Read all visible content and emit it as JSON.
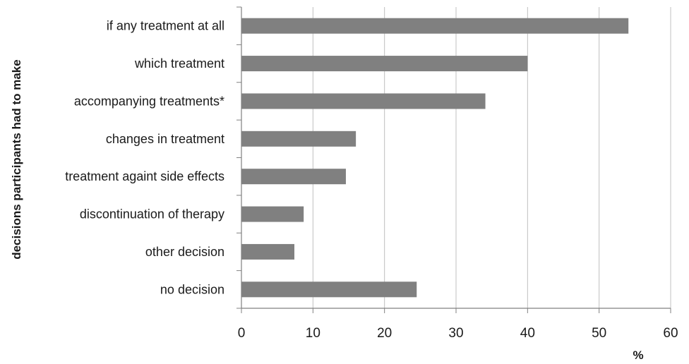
{
  "chart_data": {
    "type": "bar",
    "orientation": "horizontal",
    "categories": [
      "if any treatment at all",
      "which treatment",
      "accompanying treatments*",
      "changes in treatment",
      "treatment againt side effects",
      "discontinuation of therapy",
      "other decision",
      "no decision"
    ],
    "values": [
      54.1,
      40.0,
      34.1,
      16.0,
      14.6,
      8.7,
      7.4,
      24.5
    ],
    "xlabel": "%",
    "ylabel": "decisions participants had to make",
    "xlim": [
      0,
      60
    ],
    "xticks": [
      "0",
      "10",
      "20",
      "30",
      "40",
      "50",
      "60"
    ],
    "grid": "vertical",
    "legend": "none",
    "bar_color": "#808080",
    "grid_color": "#c0c0c0",
    "axis_color": "#808080"
  }
}
